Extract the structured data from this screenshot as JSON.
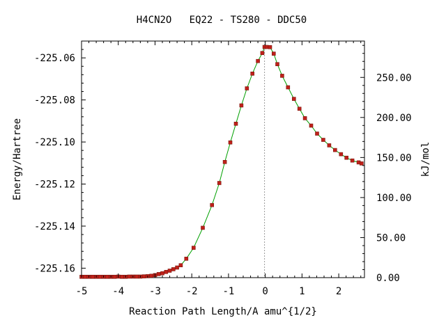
{
  "chart_data": {
    "type": "line",
    "title": "H4CN2O   EQ22 - TS280 - DDC50",
    "xlabel": "Reaction Path Length/A amu^{1/2}",
    "ylabel": "Energy/Hartree",
    "y2label": "kJ/mol",
    "xlim": [
      -5.0,
      2.7
    ],
    "ylim": [
      -225.1645,
      -225.052
    ],
    "y2lim": [
      0.0,
      295.4
    ],
    "x_ticks": [
      "-5",
      "-4",
      "-3",
      "-2",
      "-1",
      "0",
      "1",
      "2"
    ],
    "x_tick_values": [
      -5,
      -4,
      -3,
      -2,
      -1,
      0,
      1,
      2
    ],
    "y_ticks": [
      "-225.06",
      "-225.08",
      "-225.10",
      "-225.12",
      "-225.14",
      "-225.16"
    ],
    "y_tick_values": [
      -225.06,
      -225.08,
      -225.1,
      -225.12,
      -225.14,
      -225.16
    ],
    "y2_ticks": [
      "250.00",
      "200.00",
      "150.00",
      "100.00",
      "50.00",
      "0.00"
    ],
    "y2_tick_values": [
      250,
      200,
      150,
      100,
      50,
      0
    ],
    "ts_marker_x": -0.02,
    "line_color": "#00a000",
    "marker_color": "#c0201a",
    "series": [
      {
        "x": [
          -5.0,
          -4.9,
          -4.8,
          -4.7,
          -4.6,
          -4.5,
          -4.4,
          -4.3,
          -4.2,
          -4.1,
          -4.0,
          -3.9,
          -3.8,
          -3.7,
          -3.6,
          -3.5,
          -3.4,
          -3.3,
          -3.2,
          -3.1,
          -3.0,
          -2.9,
          -2.8,
          -2.7,
          -2.6,
          -2.5,
          -2.4,
          -2.3,
          -2.15,
          -1.95,
          -1.7,
          -1.45,
          -1.25,
          -1.1,
          -0.95,
          -0.8,
          -0.65,
          -0.5,
          -0.35,
          -0.2,
          -0.08,
          -0.02,
          0.04,
          0.13,
          0.23,
          0.33,
          0.46,
          0.62,
          0.78,
          0.93,
          1.08,
          1.25,
          1.41,
          1.58,
          1.74,
          1.9,
          2.06,
          2.21,
          2.37,
          2.54,
          2.62
        ],
        "y": [
          -225.1641,
          -225.1641,
          -225.1641,
          -225.1641,
          -225.1641,
          -225.1641,
          -225.1641,
          -225.1641,
          -225.1641,
          -225.1641,
          -225.164,
          -225.1641,
          -225.1641,
          -225.164,
          -225.164,
          -225.164,
          -225.164,
          -225.1639,
          -225.1638,
          -225.1636,
          -225.1633,
          -225.1628,
          -225.1624,
          -225.1618,
          -225.1612,
          -225.1605,
          -225.1597,
          -225.1586,
          -225.1555,
          -225.1503,
          -225.1408,
          -225.13,
          -225.1195,
          -225.1095,
          -225.1002,
          -225.0913,
          -225.0826,
          -225.0745,
          -225.0675,
          -225.0615,
          -225.0577,
          -225.0548,
          -225.0548,
          -225.0549,
          -225.058,
          -225.063,
          -225.0685,
          -225.074,
          -225.0795,
          -225.0842,
          -225.0887,
          -225.0922,
          -225.096,
          -225.099,
          -225.1016,
          -225.1038,
          -225.1058,
          -225.1075,
          -225.1088,
          -225.1097,
          -225.1102
        ]
      }
    ]
  }
}
